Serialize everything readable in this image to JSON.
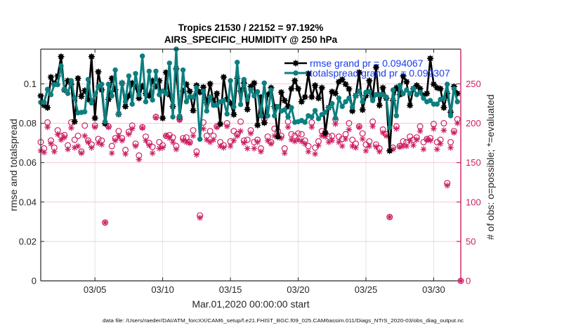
{
  "footer": {
    "data_file": "data file: /Users/raeder/DAI/ATM_forcXX/CAM6_setup/f.e21.FHIST_BGC.f09_025.CAM6assim.011/Diags_NTrS_2020-03/obs_diag_output.nc"
  },
  "chart_data": {
    "type": "line",
    "title": [
      "Tropics 21530 / 22152 = 97.192%",
      "AIRS_SPECIFIC_HUMIDITY @ 250 hPa"
    ],
    "xlabel": "Mar.01,2020 00:00:00 start",
    "ylabel": "rmse and totalspread",
    "y2label": "# of obs: o=possible; *=evaluated",
    "x_units": "days since Mar.01,2020 00:00:00",
    "xlim": [
      0,
      31
    ],
    "ylim": [
      0,
      0.1176
    ],
    "y2lim": [
      0,
      294
    ],
    "grid": true,
    "legend_position": "top-right",
    "xticks": {
      "values": [
        4,
        9,
        14,
        19,
        24,
        29
      ],
      "labels": [
        "03/05",
        "03/10",
        "03/15",
        "03/20",
        "03/25",
        "03/30"
      ]
    },
    "yticks": {
      "values": [
        0,
        0.02,
        0.04,
        0.06,
        0.08,
        0.1
      ],
      "labels": [
        "0",
        "0.02",
        "0.04",
        "0.06",
        "0.08",
        "0.1"
      ]
    },
    "y2ticks": {
      "values": [
        0,
        50,
        100,
        150,
        200,
        250
      ],
      "labels": [
        "0",
        "50",
        "100",
        "150",
        "200",
        "250"
      ]
    },
    "colors": {
      "rmse": "#000000",
      "spread": "#0c7f80",
      "obs": "#cc1f63",
      "legend_text": "#1a3cf0",
      "right_axis": "#cc1f63"
    },
    "legend": [
      {
        "series": "rmse",
        "label": "rmse grand pr = 0.094067"
      },
      {
        "series": "spread",
        "label": "totalspread grand pr = 0.092307"
      }
    ],
    "x": [
      0,
      0.25,
      0.5,
      0.75,
      1,
      1.25,
      1.5,
      1.75,
      2,
      2.25,
      2.5,
      2.75,
      3,
      3.25,
      3.5,
      3.75,
      4,
      4.25,
      4.5,
      4.75,
      5,
      5.25,
      5.5,
      5.75,
      6,
      6.25,
      6.5,
      6.75,
      7,
      7.25,
      7.5,
      7.75,
      8,
      8.25,
      8.5,
      8.75,
      9,
      9.25,
      9.5,
      9.75,
      10,
      10.25,
      10.5,
      10.75,
      11,
      11.25,
      11.5,
      11.75,
      12,
      12.25,
      12.5,
      12.75,
      13,
      13.25,
      13.5,
      13.75,
      14,
      14.25,
      14.5,
      14.75,
      15,
      15.25,
      15.5,
      15.75,
      16,
      16.25,
      16.5,
      16.75,
      17,
      17.25,
      17.5,
      17.75,
      18,
      18.25,
      18.5,
      18.75,
      19,
      19.25,
      19.5,
      19.75,
      20,
      20.25,
      20.5,
      20.75,
      21,
      21.25,
      21.5,
      21.75,
      22,
      22.25,
      22.5,
      22.75,
      23,
      23.25,
      23.5,
      23.75,
      24,
      24.25,
      24.5,
      24.75,
      25,
      25.25,
      25.5,
      25.75,
      26,
      26.25,
      26.5,
      26.75,
      27,
      27.25,
      27.5,
      27.75,
      28,
      28.25,
      28.5,
      28.75,
      29,
      29.25,
      29.5,
      29.75,
      30,
      30.25,
      30.5,
      30.75,
      31
    ],
    "series": [
      {
        "name": "rmse",
        "axis": "left",
        "values": [
          0.0939,
          0.0891,
          0.0879,
          0.1034,
          0.1,
          0.104,
          0.1138,
          0.0969,
          0.1016,
          0.0998,
          0.0808,
          0.1028,
          0.0936,
          0.0966,
          0.092,
          0.1138,
          0.0826,
          0.1061,
          0.0969,
          0.0798,
          0.0921,
          0.1028,
          0.097,
          0.0846,
          0.1004,
          0.0885,
          0.0939,
          0.1004,
          0.0986,
          0.0927,
          0.099,
          0.0951,
          0.0939,
          0.1016,
          0.0986,
          0.1016,
          0.0826,
          0.1058,
          0.0945,
          0.0885,
          0.1076,
          0.0832,
          0.0963,
          0.0998,
          0.0962,
          0.0864,
          0.0992,
          0.0957,
          0.0983,
          0.0903,
          0.1,
          0.0909,
          0.0951,
          0.0796,
          0.1034,
          0.0921,
          0.0903,
          0.0844,
          0.1028,
          0.0963,
          0.1004,
          0.087,
          0.0986,
          0.1004,
          0.079,
          0.0933,
          0.0802,
          0.0945,
          0.098,
          0.0885,
          0.0731,
          0.0957,
          0.0915,
          0.0885,
          0.0975,
          0.1016,
          0.0975,
          0.0909,
          0.0933,
          0.1052,
          0.0933,
          0.0992,
          0.0927,
          0.098,
          0.0749,
          0.0879,
          0.096,
          0.0951,
          0.101,
          0.1022,
          0.0998,
          0.0974,
          0.0862,
          0.094,
          0.1058,
          0.0868,
          0.094,
          0.1016,
          0.0933,
          0.1084,
          0.0891,
          0.098,
          0.0927,
          0.066,
          0.0915,
          0.098,
          0.0945,
          0.104,
          0.101,
          0.0891,
          0.0975,
          0.0992,
          0.0975,
          0.094,
          0.0951,
          0.1129,
          0.0998,
          0.098,
          0.0975,
          0.0879,
          0.0951,
          0.0856,
          0.0986,
          0.0951,
          null
        ]
      },
      {
        "name": "totalspread",
        "axis": "left",
        "values": [
          0.0906,
          0.0906,
          0.0972,
          0.0945,
          0.0996,
          0.0996,
          0.1091,
          0.0972,
          0.0951,
          0.1016,
          0.0927,
          0.0853,
          0.0855,
          0.0858,
          0.1022,
          0.0903,
          0.0945,
          0.0986,
          0.0998,
          0.0808,
          0.0998,
          0.0939,
          0.107,
          0.0846,
          0.1004,
          0.0909,
          0.104,
          0.0897,
          0.1052,
          0.0945,
          0.1141,
          0.0909,
          0.1064,
          0.0918,
          0.1064,
          0.0945,
          0.0963,
          0.0951,
          0.1105,
          0.0832,
          0.1176,
          0.0832,
          0.107,
          0.0909,
          0.0935,
          0.0933,
          0.098,
          0.0719,
          0.0963,
          0.0862,
          0.0933,
          0.0891,
          0.0891,
          0.0909,
          0.0915,
          0.0847,
          0.1016,
          0.0883,
          0.1109,
          0.0895,
          0.1022,
          0.0921,
          0.0969,
          0.0939,
          0.096,
          0.0838,
          0.1004,
          0.0838,
          0.0969,
          0.0838,
          0.0885,
          0.0862,
          0.0868,
          0.0832,
          0.0879,
          0.0805,
          0.0808,
          0.0814,
          0.0805,
          0.0838,
          0.0832,
          0.0864,
          0.0823,
          0.0844,
          0.0856,
          0.0879,
          0.09,
          0.0826,
          0.0927,
          0.0885,
          0.0909,
          0.0927,
          0.0882,
          0.0941,
          0.0963,
          0.0909,
          0.0957,
          0.096,
          0.0915,
          0.0945,
          0.0945,
          0.0945,
          0.0933,
          0.0778,
          0.0969,
          0.0838,
          0.0992,
          0.095,
          0.0969,
          0.0951,
          0.0977,
          0.0945,
          0.0957,
          0.0927,
          0.0909,
          0.0915,
          0.0897,
          0.0897,
          0.0921,
          0.0927,
          0.0998,
          0.0838,
          0.0975,
          0.0909,
          null
        ]
      },
      {
        "name": "obs possible",
        "axis": "right",
        "marker": "o",
        "values": [
          176,
          168,
          201,
          178,
          169,
          191,
          184,
          185,
          172,
          201,
          179,
          184,
          164,
          197,
          178,
          173,
          197,
          180,
          178,
          74,
          196,
          171,
          181,
          190,
          181,
          166,
          189,
          197,
          174,
          159,
          195,
          183,
          175,
          170,
          208,
          176,
          172,
          184,
          185,
          182,
          171,
          205,
          181,
          182,
          176,
          191,
          164,
          83,
          201,
          184,
          190,
          184,
          196,
          176,
          172,
          200,
          177,
          190,
          186,
          202,
          178,
          179,
          191,
          176,
          179,
          168,
          205,
          183,
          176,
          193,
          190,
          184,
          168,
          202,
          186,
          184,
          187,
          186,
          178,
          171,
          201,
          169,
          177,
          190,
          188,
          183,
          184,
          205,
          183,
          180,
          186,
          200,
          179,
          174,
          196,
          187,
          173,
          177,
          202,
          173,
          168,
          192,
          186,
          81,
          169,
          196,
          171,
          177,
          176,
          183,
          179,
          182,
          196,
          176,
          180,
          181,
          199,
          176,
          179,
          200,
          124,
          176,
          190,
          205,
          0
        ]
      },
      {
        "name": "obs evaluated",
        "axis": "right",
        "marker": "*",
        "values": [
          165,
          163,
          195,
          174,
          164,
          186,
          179,
          182,
          167,
          194,
          169,
          171,
          162,
          184,
          176,
          169,
          195,
          175,
          173,
          74,
          195,
          162,
          178,
          184,
          178,
          161,
          186,
          193,
          171,
          154,
          194,
          178,
          172,
          162,
          207,
          168,
          169,
          184,
          181,
          176,
          167,
          204,
          178,
          176,
          175,
          184,
          160,
          80,
          193,
          179,
          176,
          179,
          195,
          171,
          169,
          196,
          171,
          178,
          184,
          190,
          175,
          168,
          187,
          168,
          176,
          164,
          201,
          178,
          174,
          184,
          183,
          181,
          162,
          195,
          179,
          177,
          179,
          177,
          174,
          164,
          195,
          161,
          172,
          184,
          183,
          176,
          178,
          199,
          176,
          171,
          180,
          192,
          171,
          169,
          195,
          180,
          165,
          171,
          196,
          170,
          164,
          188,
          184,
          81,
          167,
          193,
          170,
          171,
          171,
          178,
          172,
          179,
          190,
          167,
          179,
          178,
          193,
          167,
          174,
          191,
          121,
          169,
          188,
          200,
          0
        ]
      }
    ]
  }
}
